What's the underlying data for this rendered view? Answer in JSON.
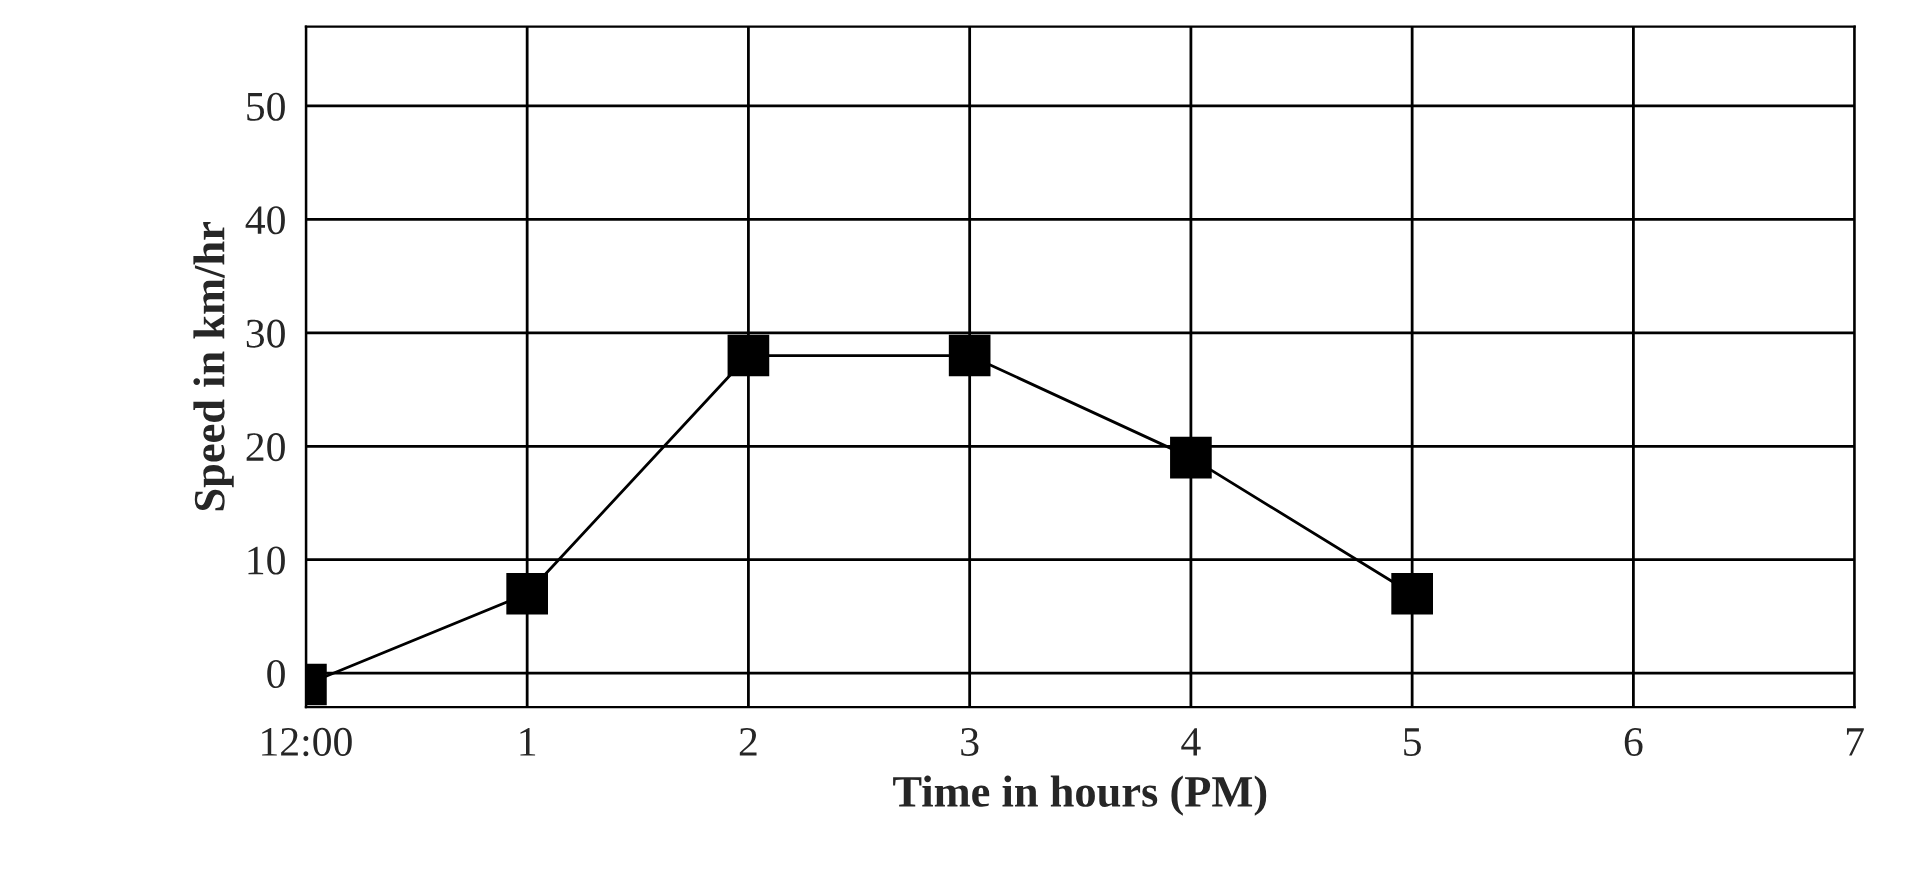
{
  "chart_data": {
    "type": "line",
    "xlabel": "Time in hours (PM)",
    "ylabel": "Speed in km/hr",
    "categories": [
      "12:00",
      "1",
      "2",
      "3",
      "4",
      "5",
      "6",
      "7"
    ],
    "series": [
      {
        "color": "#000000",
        "values": [
          -1,
          7,
          28,
          28,
          19,
          7,
          null,
          null
        ]
      }
    ],
    "ylim": [
      -3,
      57
    ],
    "yticks": [
      0,
      10,
      20,
      30,
      40,
      50
    ],
    "grid": true,
    "marker": "square",
    "line_style": "solid"
  }
}
